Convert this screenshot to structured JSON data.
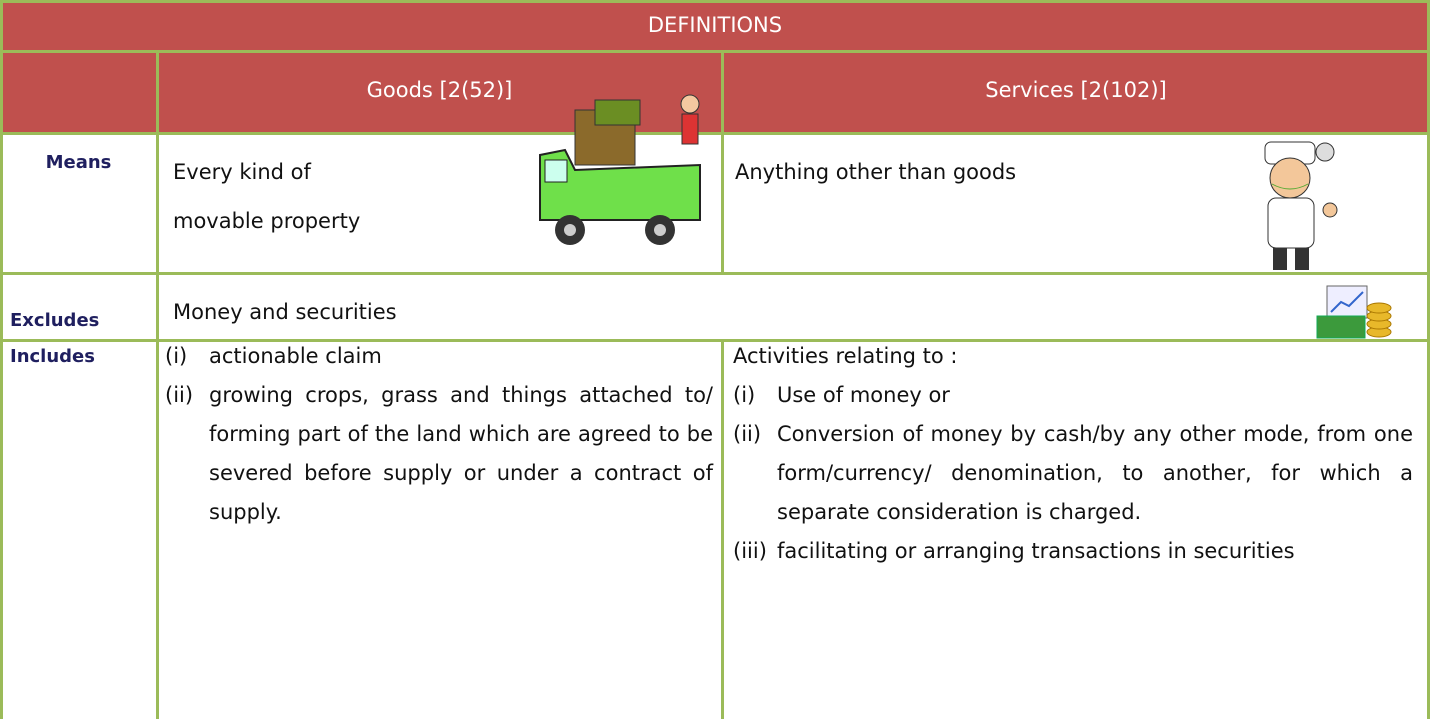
{
  "table": {
    "title": "DEFINITIONS",
    "columns": [
      "Goods [2(52)]",
      "Services [2(102)]"
    ],
    "means": {
      "label": "Means",
      "goods": [
        "Every kind of",
        "movable property"
      ],
      "services": "Anything other than goods"
    },
    "excludes": {
      "label": "Excludes",
      "text": "Money and securities"
    },
    "includes": {
      "label": "Includes",
      "goods": [
        {
          "marker": "(i)",
          "text": "actionable claim"
        },
        {
          "marker": "(ii)",
          "text": "growing crops, grass and things attached to/ forming part of the land which are agreed to be severed before supply or under a contract of supply."
        }
      ],
      "services": {
        "intro": "Activities relating to :",
        "items": [
          {
            "marker": "(i)",
            "text": "Use of money or"
          },
          {
            "marker": "(ii)",
            "text": "Conversion of money by cash/by any other mode, from one form/currency/ denomination, to another, for which a separate consideration is charged."
          },
          {
            "marker": "(iii)",
            "text": "facilitating or arranging transactions in securities"
          }
        ]
      }
    }
  }
}
